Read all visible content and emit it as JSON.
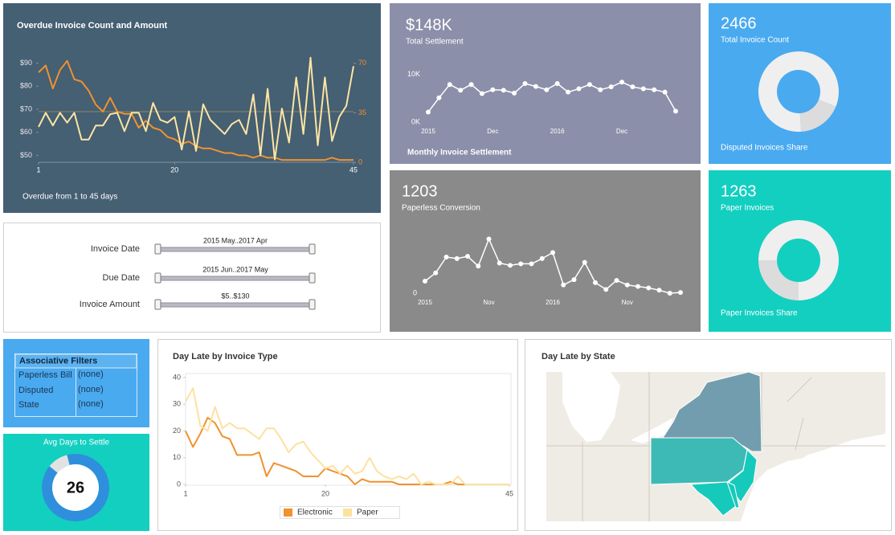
{
  "chart_data": [
    {
      "type": "line",
      "title": "Overdue Invoice Count and Amount",
      "subtitle": "Overdue from 1 to 45 days",
      "x": [
        1,
        2,
        3,
        4,
        5,
        6,
        7,
        8,
        9,
        10,
        11,
        12,
        13,
        14,
        15,
        16,
        17,
        18,
        19,
        20,
        21,
        22,
        23,
        24,
        25,
        26,
        27,
        28,
        29,
        30,
        31,
        32,
        33,
        34,
        35,
        36,
        37,
        38,
        39,
        40,
        41,
        42,
        43,
        44,
        45
      ],
      "xlim": [
        1,
        45
      ],
      "xticks": [
        1,
        20,
        45
      ],
      "ylim": [
        47,
        93
      ],
      "yticks": [
        {
          "value": 50,
          "label": "$50"
        },
        {
          "value": 60,
          "label": "$60"
        },
        {
          "value": 70,
          "label": "$70"
        },
        {
          "value": 80,
          "label": "$80"
        },
        {
          "value": 90,
          "label": "$90"
        }
      ],
      "y2lim": [
        0,
        75
      ],
      "y2ticks": [
        0,
        35,
        70
      ],
      "series": [
        {
          "color": "#f0922e",
          "values": [
            86,
            89,
            79,
            87,
            91,
            83,
            82,
            78,
            72,
            69,
            75,
            69,
            68,
            68,
            62,
            65,
            62,
            61,
            58,
            57,
            55,
            56,
            54,
            53,
            53,
            52,
            51,
            51,
            50,
            50,
            49,
            50,
            49,
            49,
            48,
            48,
            48,
            48,
            48,
            48,
            48,
            49,
            48,
            48,
            48
          ]
        },
        {
          "color": "#fde5a2",
          "axis": "y2",
          "values": [
            25,
            35,
            26,
            35,
            28,
            35,
            16,
            16,
            26,
            26,
            34,
            35,
            22,
            35,
            35,
            22,
            42,
            30,
            28,
            32,
            9,
            36,
            8,
            41,
            30,
            25,
            20,
            27,
            30,
            20,
            48,
            5,
            52,
            2,
            38,
            14,
            60,
            20,
            74,
            12,
            60,
            15,
            32,
            40,
            68
          ]
        }
      ]
    },
    {
      "type": "line",
      "kpi": "$148K",
      "kpi_label": "Total Settlement",
      "title": "Monthly Invoice Settlement",
      "categories": [
        "2015",
        null,
        null,
        null,
        null,
        null,
        "Dec",
        null,
        null,
        null,
        null,
        null,
        "2016",
        null,
        null,
        null,
        null,
        null,
        "Dec",
        null,
        null,
        null,
        null,
        null
      ],
      "values": [
        2100,
        5100,
        7900,
        6700,
        7900,
        6000,
        6800,
        6700,
        6100,
        8100,
        7500,
        6800,
        8100,
        6300,
        7000,
        7900,
        6800,
        7400,
        8400,
        7400,
        7000,
        6800,
        6300,
        2300
      ],
      "color": "#ffffff",
      "ylim": [
        0,
        13000
      ],
      "yticks": [
        {
          "value": 0,
          "label": "0K"
        },
        {
          "value": 10000,
          "label": "10K"
        }
      ]
    },
    {
      "type": "line",
      "kpi": "1203",
      "kpi_label": "Paperless Conversion",
      "categories": [
        "2015",
        null,
        null,
        null,
        null,
        null,
        "Nov",
        null,
        null,
        null,
        null,
        null,
        "2016",
        null,
        null,
        null,
        null,
        null,
        null,
        "Nov",
        null,
        null,
        null,
        null,
        null
      ],
      "values": [
        16,
        27,
        48,
        46,
        49,
        36,
        72,
        40,
        37,
        39,
        39,
        46,
        54,
        11,
        18,
        41,
        14,
        5,
        17,
        11,
        9,
        7,
        4,
        0,
        1
      ],
      "color": "#ffffff",
      "ylim": [
        0,
        80
      ],
      "yticks": [
        0
      ]
    },
    {
      "type": "donut",
      "kpi": "2466",
      "kpi_label": "Total Invoice Count",
      "title": "Disputed Invoices Share",
      "values": [
        18,
        82
      ],
      "colors": [
        "#dcdcdc",
        "#efefef"
      ]
    },
    {
      "type": "donut",
      "kpi": "1263",
      "kpi_label": "Paper Invoices",
      "title": "Paper Invoices Share",
      "values": [
        25,
        75
      ],
      "colors": [
        "#dcdcdc",
        "#efefef"
      ]
    },
    {
      "type": "donut",
      "title": "Avg Days to Settle",
      "center_value": 26,
      "values": [
        10,
        90
      ],
      "colors": [
        "#e2e2e2",
        "#2f8fdc"
      ]
    },
    {
      "type": "line",
      "title": "Day Late by Invoice Type",
      "x": [
        1,
        2,
        3,
        4,
        5,
        6,
        7,
        8,
        9,
        10,
        11,
        12,
        13,
        14,
        15,
        16,
        17,
        18,
        19,
        20,
        21,
        22,
        23,
        24,
        25,
        26,
        27,
        28,
        29,
        30,
        31,
        32,
        33,
        34,
        35,
        36,
        37,
        38,
        39,
        40,
        41,
        42,
        43,
        44,
        45
      ],
      "xlim": [
        1,
        45
      ],
      "xticks": [
        1,
        20,
        45
      ],
      "ylim": [
        0,
        40
      ],
      "yticks": [
        0,
        10,
        20,
        30,
        40
      ],
      "legend": "bottom",
      "series": [
        {
          "name": "Electronic",
          "color": "#f0922e",
          "values": [
            20,
            14,
            19,
            25,
            23,
            18,
            17,
            11,
            11,
            11,
            12,
            3,
            8,
            7,
            6,
            5,
            3,
            3,
            3,
            6,
            5,
            4,
            3,
            0,
            2,
            1,
            1,
            1,
            1,
            0,
            0,
            0,
            0,
            0,
            0,
            0,
            1,
            0,
            0,
            0,
            0,
            0,
            0,
            0,
            0
          ]
        },
        {
          "name": "Paper",
          "color": "#fde1a0",
          "values": [
            31,
            36,
            22,
            20,
            29,
            21,
            23,
            21,
            21,
            19,
            17,
            21,
            21,
            17,
            12,
            15,
            16,
            12,
            9,
            6,
            7,
            4,
            7,
            4,
            5,
            10,
            5,
            3,
            2,
            3,
            2,
            4,
            0,
            1,
            0,
            0,
            0,
            3,
            0,
            0,
            0,
            0,
            0,
            0,
            0
          ]
        }
      ]
    }
  ],
  "filters": {
    "rows": [
      {
        "label": "Invoice Date",
        "range": "2015 May..2017 Apr"
      },
      {
        "label": "Due Date",
        "range": "2015 Jun..2017 May"
      },
      {
        "label": "Invoice Amount",
        "range": "$5..$130"
      }
    ]
  },
  "associative_filters": {
    "title": "Associative Filters",
    "rows": [
      [
        "Paperless Bill",
        "(none)"
      ],
      [
        "Disputed",
        "(none)"
      ],
      [
        "State",
        "(none)"
      ]
    ]
  },
  "map": {
    "title": "Day Late by State"
  }
}
